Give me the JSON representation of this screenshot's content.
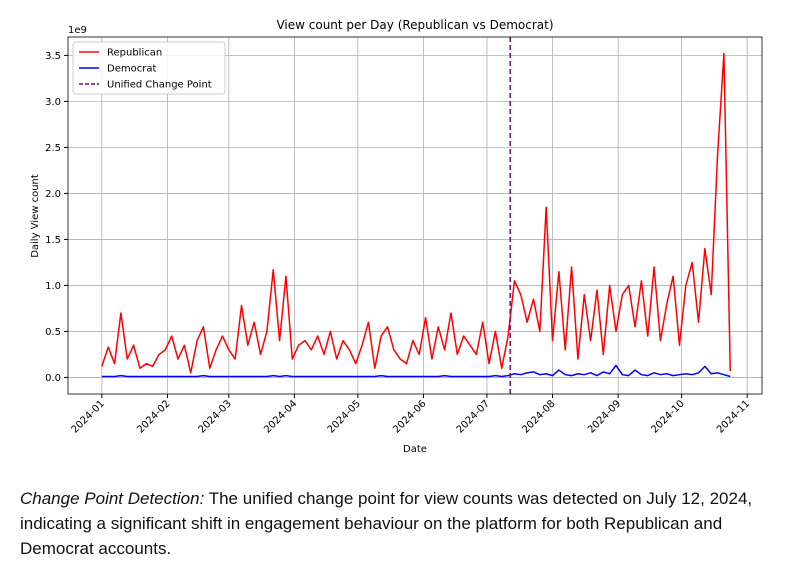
{
  "chart_data": {
    "type": "line",
    "title": "View count per Day (Republican vs Democrat)",
    "x_label": "Date",
    "y_label": "Daily View count",
    "y_offset_label": "1e9",
    "x": [
      "2024-01-01",
      "2024-01-04",
      "2024-01-07",
      "2024-01-10",
      "2024-01-13",
      "2024-01-16",
      "2024-01-19",
      "2024-01-22",
      "2024-01-25",
      "2024-01-28",
      "2024-01-31",
      "2024-02-03",
      "2024-02-06",
      "2024-02-09",
      "2024-02-12",
      "2024-02-15",
      "2024-02-18",
      "2024-02-21",
      "2024-02-24",
      "2024-02-27",
      "2024-03-01",
      "2024-03-04",
      "2024-03-07",
      "2024-03-10",
      "2024-03-13",
      "2024-03-16",
      "2024-03-19",
      "2024-03-22",
      "2024-03-25",
      "2024-03-28",
      "2024-03-31",
      "2024-04-03",
      "2024-04-06",
      "2024-04-09",
      "2024-04-12",
      "2024-04-15",
      "2024-04-18",
      "2024-04-21",
      "2024-04-24",
      "2024-04-27",
      "2024-04-30",
      "2024-05-03",
      "2024-05-06",
      "2024-05-09",
      "2024-05-12",
      "2024-05-15",
      "2024-05-18",
      "2024-05-21",
      "2024-05-24",
      "2024-05-27",
      "2024-05-30",
      "2024-06-02",
      "2024-06-05",
      "2024-06-08",
      "2024-06-11",
      "2024-06-14",
      "2024-06-17",
      "2024-06-20",
      "2024-06-23",
      "2024-06-26",
      "2024-06-29",
      "2024-07-02",
      "2024-07-05",
      "2024-07-08",
      "2024-07-11",
      "2024-07-14",
      "2024-07-17",
      "2024-07-20",
      "2024-07-23",
      "2024-07-26",
      "2024-07-29",
      "2024-08-01",
      "2024-08-04",
      "2024-08-07",
      "2024-08-10",
      "2024-08-13",
      "2024-08-16",
      "2024-08-19",
      "2024-08-22",
      "2024-08-25",
      "2024-08-28",
      "2024-08-31",
      "2024-09-03",
      "2024-09-06",
      "2024-09-09",
      "2024-09-12",
      "2024-09-15",
      "2024-09-18",
      "2024-09-21",
      "2024-09-24",
      "2024-09-27",
      "2024-09-30",
      "2024-10-03",
      "2024-10-06",
      "2024-10-09",
      "2024-10-12",
      "2024-10-15",
      "2024-10-18",
      "2024-10-21",
      "2024-10-24"
    ],
    "series": [
      {
        "name": "Republican",
        "color": "#ff0000",
        "values": [
          0.12,
          0.33,
          0.15,
          0.7,
          0.2,
          0.35,
          0.1,
          0.15,
          0.12,
          0.25,
          0.3,
          0.45,
          0.2,
          0.35,
          0.05,
          0.4,
          0.55,
          0.1,
          0.3,
          0.45,
          0.3,
          0.2,
          0.78,
          0.35,
          0.6,
          0.25,
          0.5,
          1.17,
          0.4,
          1.1,
          0.2,
          0.35,
          0.4,
          0.3,
          0.45,
          0.25,
          0.5,
          0.2,
          0.4,
          0.3,
          0.15,
          0.35,
          0.6,
          0.1,
          0.45,
          0.55,
          0.3,
          0.2,
          0.15,
          0.4,
          0.25,
          0.65,
          0.2,
          0.55,
          0.3,
          0.7,
          0.25,
          0.45,
          0.35,
          0.25,
          0.6,
          0.15,
          0.5,
          0.1,
          0.45,
          1.05,
          0.9,
          0.6,
          0.85,
          0.5,
          1.85,
          0.4,
          1.15,
          0.3,
          1.2,
          0.2,
          0.9,
          0.4,
          0.95,
          0.25,
          1.0,
          0.5,
          0.9,
          1.0,
          0.55,
          1.05,
          0.45,
          1.2,
          0.4,
          0.8,
          1.1,
          0.35,
          1.0,
          1.25,
          0.6,
          1.4,
          0.9,
          2.42,
          3.52,
          0.07
        ]
      },
      {
        "name": "Democrat",
        "color": "#0000ff",
        "values": [
          0.01,
          0.01,
          0.01,
          0.02,
          0.01,
          0.01,
          0.01,
          0.01,
          0.01,
          0.01,
          0.01,
          0.01,
          0.01,
          0.01,
          0.01,
          0.01,
          0.02,
          0.01,
          0.01,
          0.01,
          0.01,
          0.01,
          0.01,
          0.01,
          0.01,
          0.01,
          0.01,
          0.02,
          0.01,
          0.02,
          0.01,
          0.01,
          0.01,
          0.01,
          0.01,
          0.01,
          0.01,
          0.01,
          0.01,
          0.01,
          0.01,
          0.01,
          0.01,
          0.01,
          0.02,
          0.01,
          0.01,
          0.01,
          0.01,
          0.01,
          0.01,
          0.01,
          0.01,
          0.01,
          0.02,
          0.01,
          0.01,
          0.01,
          0.01,
          0.01,
          0.01,
          0.01,
          0.02,
          0.01,
          0.02,
          0.04,
          0.03,
          0.05,
          0.06,
          0.03,
          0.04,
          0.02,
          0.08,
          0.03,
          0.02,
          0.04,
          0.03,
          0.05,
          0.02,
          0.06,
          0.04,
          0.13,
          0.03,
          0.02,
          0.08,
          0.03,
          0.02,
          0.05,
          0.03,
          0.04,
          0.02,
          0.03,
          0.04,
          0.03,
          0.05,
          0.12,
          0.04,
          0.05,
          0.03,
          0.01
        ]
      }
    ],
    "change_point": {
      "name": "Unified Change Point",
      "x": "2024-07-12",
      "color": "#800080"
    },
    "xlim": [
      "2023-12-16",
      "2024-11-08"
    ],
    "xticks": [
      {
        "value": "2024-01-01",
        "label": "2024-01"
      },
      {
        "value": "2024-02-01",
        "label": "2024-02"
      },
      {
        "value": "2024-03-01",
        "label": "2024-03"
      },
      {
        "value": "2024-04-01",
        "label": "2024-04"
      },
      {
        "value": "2024-05-01",
        "label": "2024-05"
      },
      {
        "value": "2024-06-01",
        "label": "2024-06"
      },
      {
        "value": "2024-07-01",
        "label": "2024-07"
      },
      {
        "value": "2024-08-01",
        "label": "2024-08"
      },
      {
        "value": "2024-09-01",
        "label": "2024-09"
      },
      {
        "value": "2024-10-01",
        "label": "2024-10"
      },
      {
        "value": "2024-11-01",
        "label": "2024-11"
      }
    ],
    "ylim": [
      -0.18,
      3.7
    ],
    "yticks": [
      {
        "value": 0,
        "label": "0.0"
      },
      0.5,
      {
        "value": 1,
        "label": "1.0"
      },
      1.5,
      {
        "value": 2,
        "label": "2.0"
      },
      2.5,
      {
        "value": 3,
        "label": "3.0"
      },
      3.5
    ],
    "grid": true,
    "legend": "upper left"
  },
  "caption": {
    "label": "Change Point Detection:",
    "text": "The unified change point for view counts was detected on July 12, 2024, indicating a significant shift in engagement behaviour on the platform for both Republican and Democrat accounts."
  }
}
